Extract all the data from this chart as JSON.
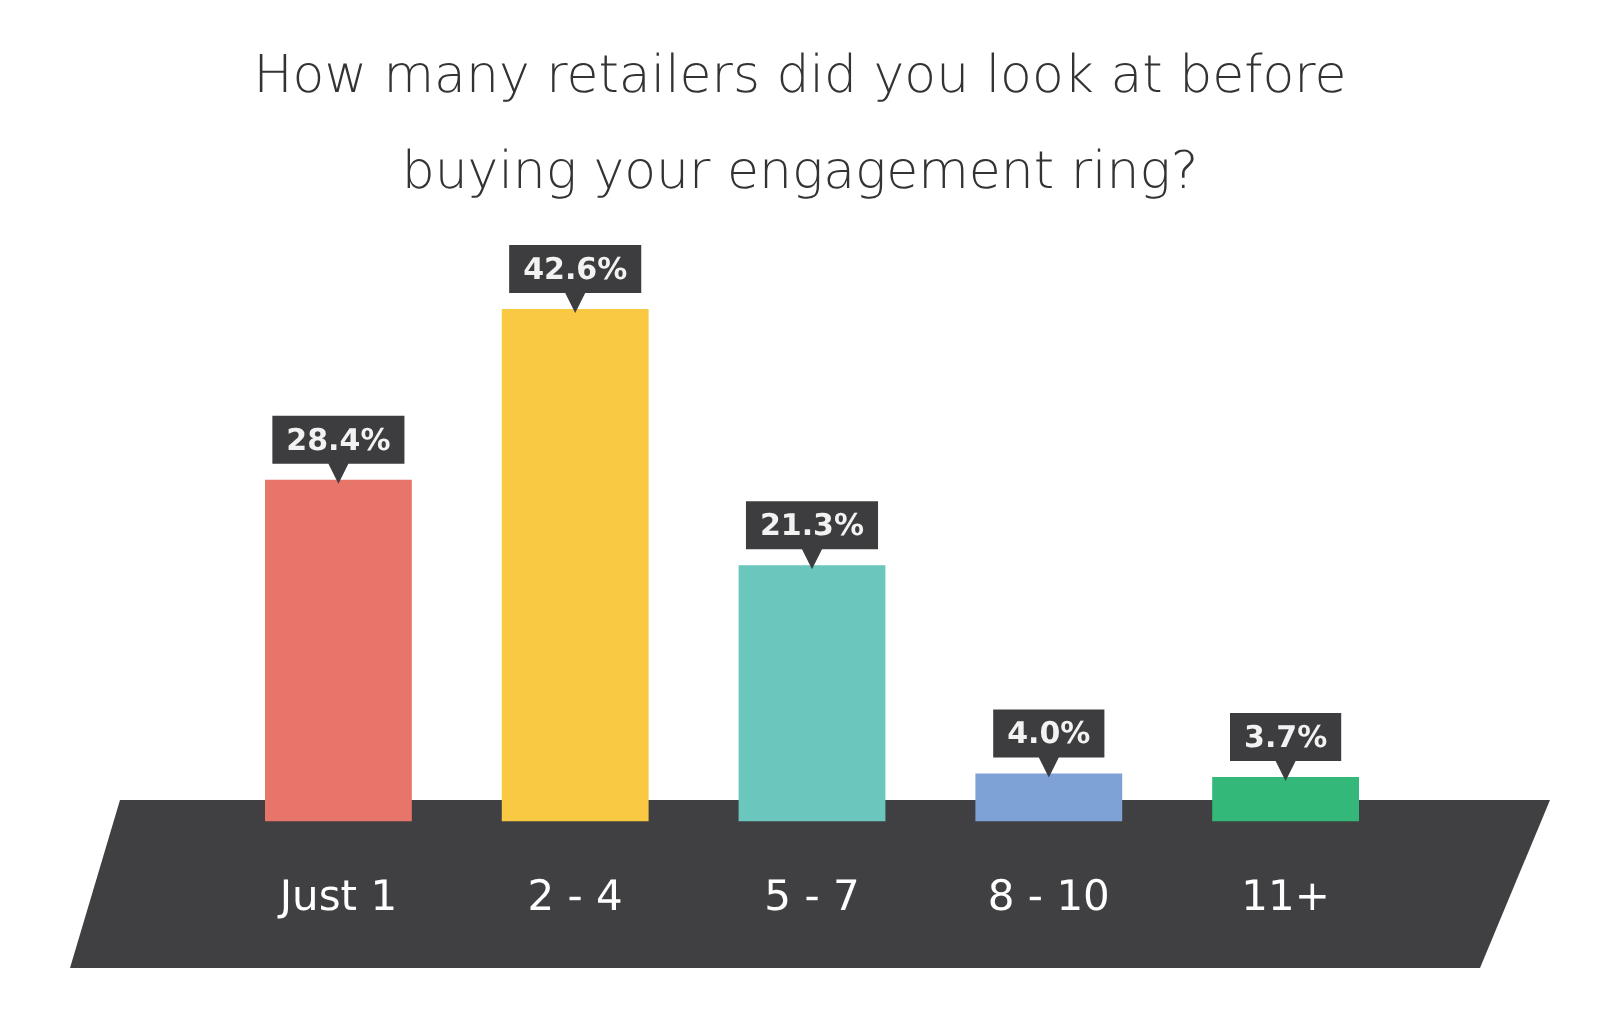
{
  "chart_data": {
    "type": "bar",
    "title": "How many retailers did you look at before buying your engagement ring?",
    "categories": [
      "Just 1",
      "2 - 4",
      "5 - 7",
      "8 - 10",
      "11+"
    ],
    "values": [
      28.4,
      42.6,
      21.3,
      4.0,
      3.7
    ],
    "value_labels": [
      "28.4%",
      "42.6%",
      "21.3%",
      "4.0%",
      "3.7%"
    ],
    "colors": [
      "#e8756a",
      "#f9c944",
      "#6bc7bd",
      "#7fa2d6",
      "#34b87a"
    ]
  }
}
